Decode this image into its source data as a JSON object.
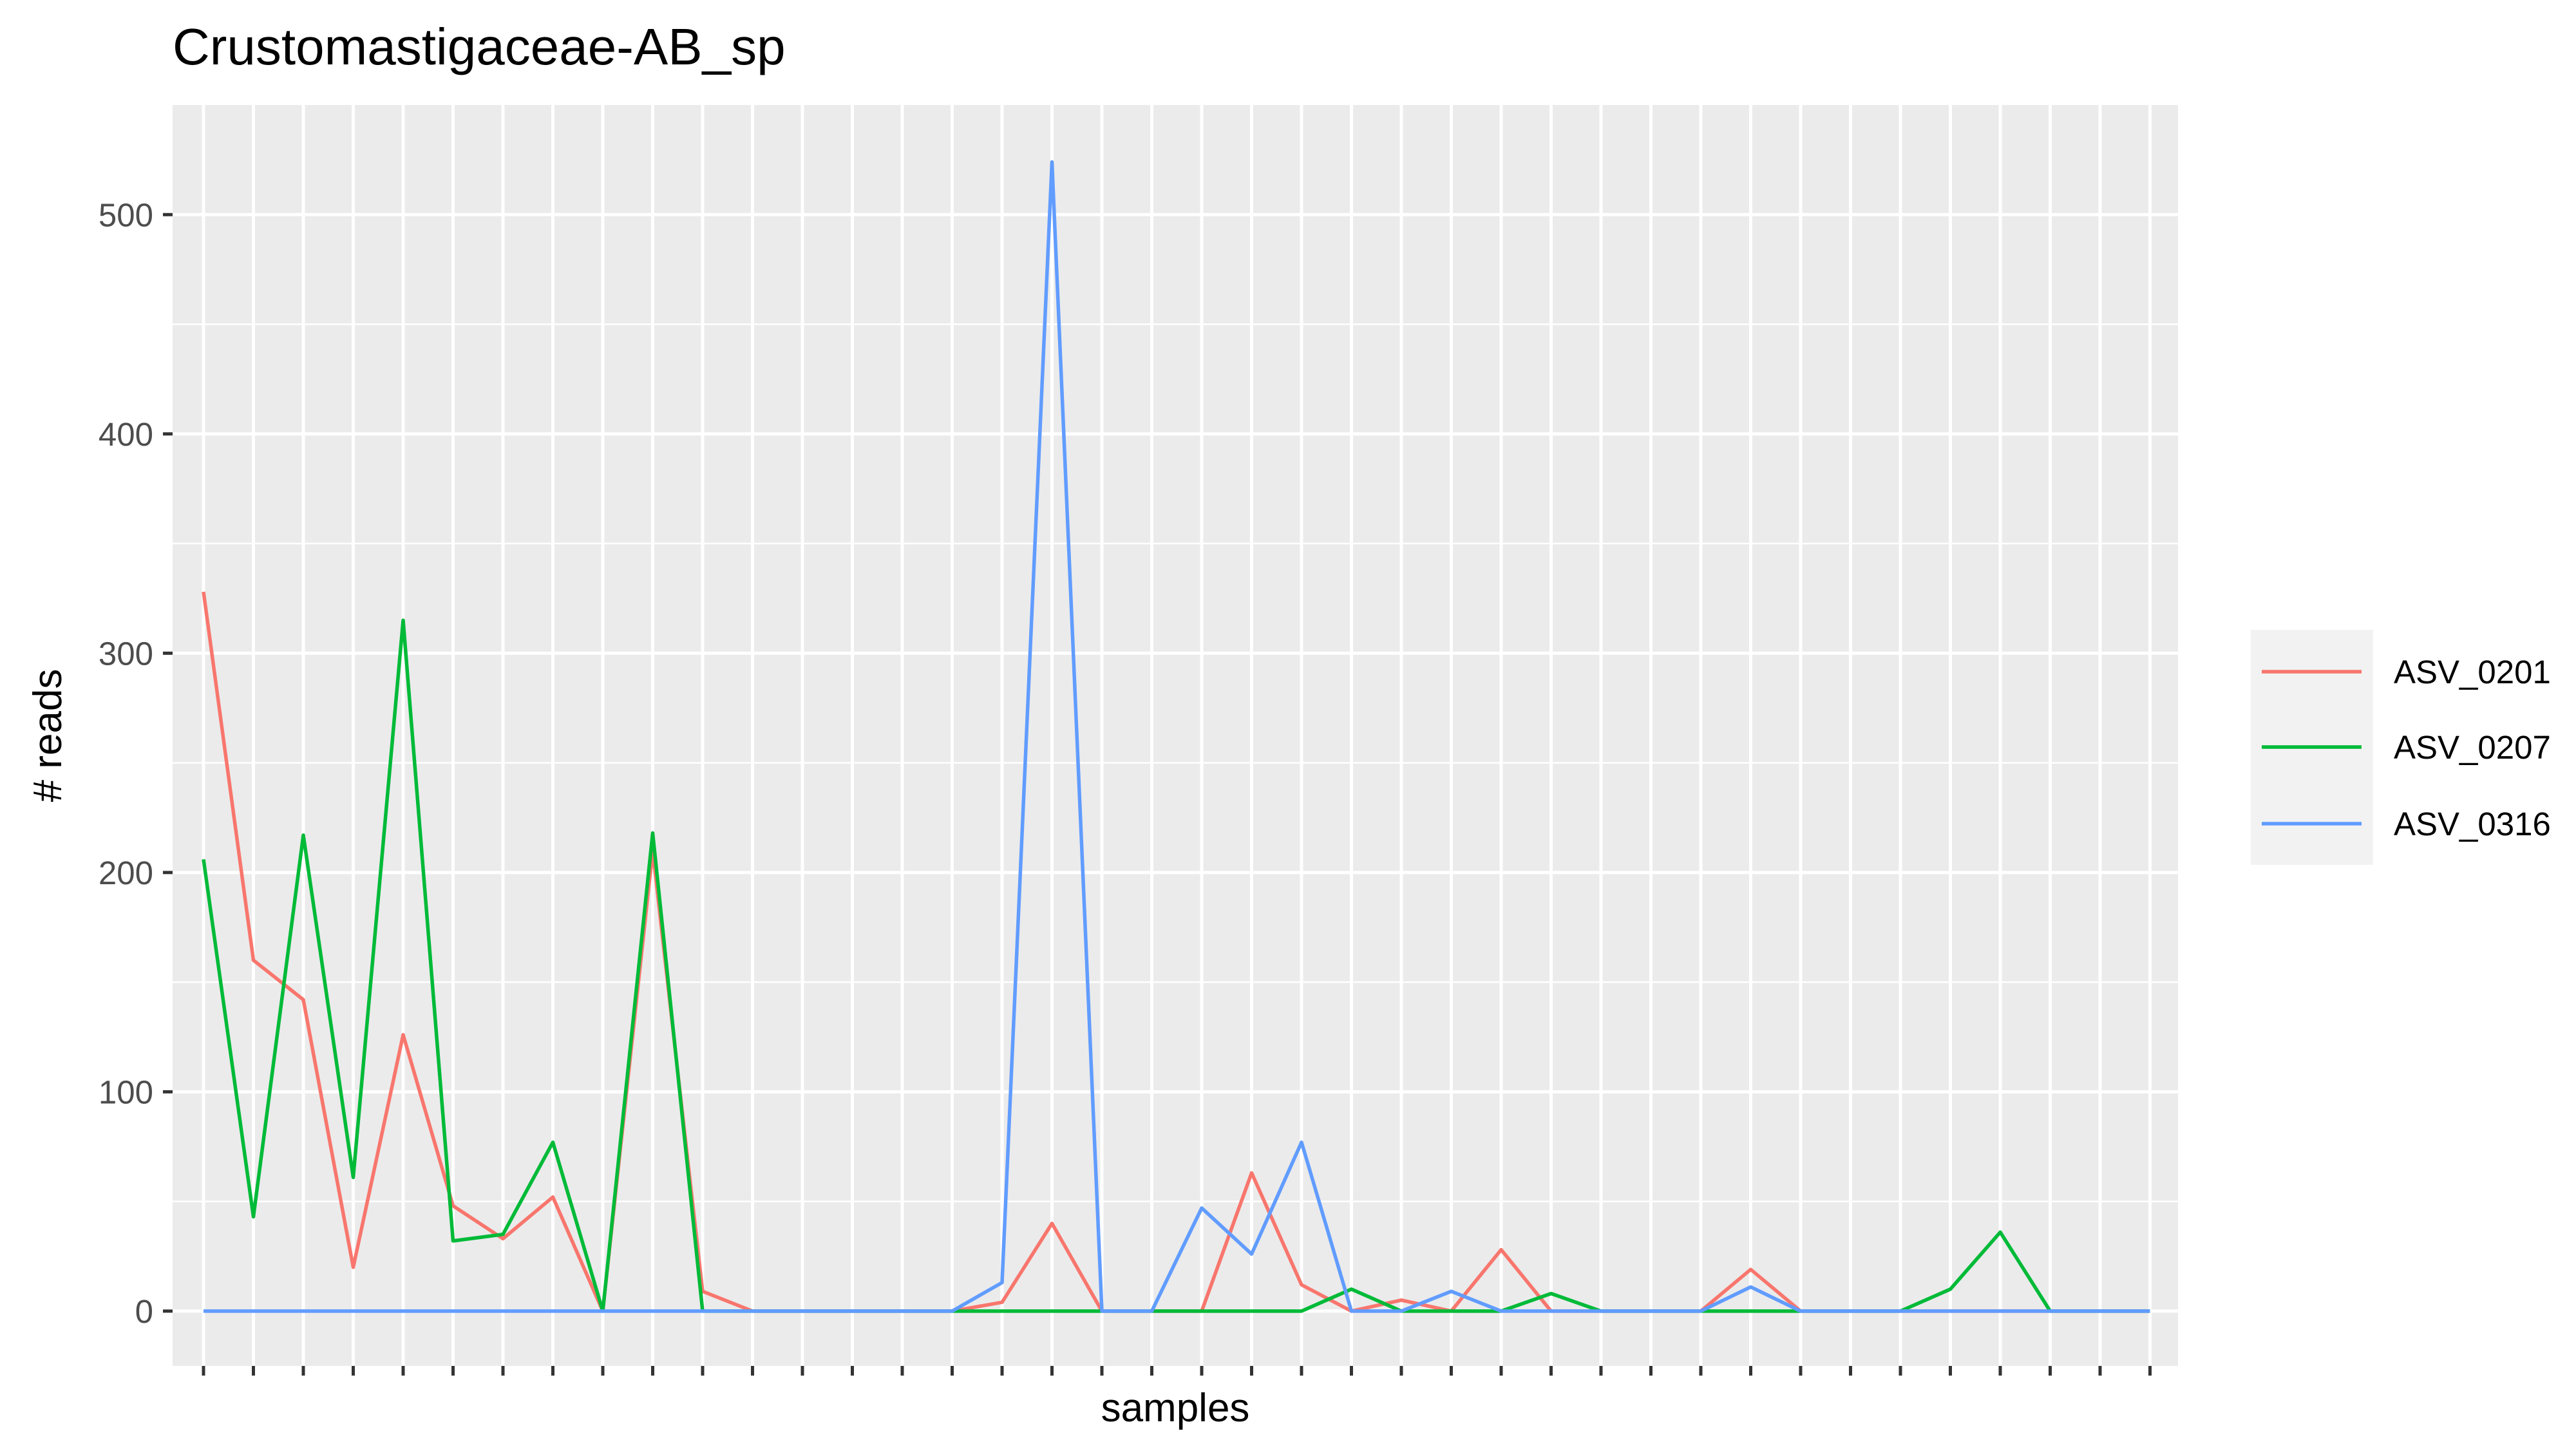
{
  "chart_data": {
    "type": "line",
    "title": "Crustomastigaceae-AB_sp",
    "xlabel": "samples",
    "ylabel": "# reads",
    "ylim": [
      -25,
      550
    ],
    "yticks": [
      0,
      100,
      200,
      300,
      400,
      500
    ],
    "x_count": 40,
    "x_tick_labels": "none (tick marks only)",
    "grid": true,
    "legend_position": "right",
    "series": [
      {
        "name": "ASV_0201",
        "color": "#F8766D",
        "values": [
          328,
          160,
          142,
          20,
          126,
          48,
          33,
          52,
          0,
          210,
          9,
          0,
          0,
          0,
          0,
          0,
          4,
          40,
          0,
          0,
          0,
          63,
          12,
          0,
          5,
          0,
          28,
          0,
          0,
          0,
          0,
          19,
          0,
          0,
          0,
          0,
          0,
          0,
          0,
          0
        ]
      },
      {
        "name": "ASV_0207",
        "color": "#00BA38",
        "values": [
          206,
          43,
          217,
          61,
          315,
          32,
          35,
          77,
          0,
          218,
          0,
          0,
          0,
          0,
          0,
          0,
          0,
          0,
          0,
          0,
          0,
          0,
          0,
          10,
          0,
          0,
          0,
          8,
          0,
          0,
          0,
          0,
          0,
          0,
          0,
          10,
          36,
          0,
          0,
          0
        ]
      },
      {
        "name": "ASV_0316",
        "color": "#619CFF",
        "values": [
          0,
          0,
          0,
          0,
          0,
          0,
          0,
          0,
          0,
          0,
          0,
          0,
          0,
          0,
          0,
          0,
          13,
          524,
          0,
          0,
          47,
          26,
          77,
          0,
          0,
          9,
          0,
          0,
          0,
          0,
          0,
          11,
          0,
          0,
          0,
          0,
          0,
          0,
          0,
          0
        ]
      }
    ]
  },
  "colors": {
    "panel_background": "#EBEBEB",
    "grid": "#FFFFFF",
    "legend_key_background": "#F2F2F2"
  }
}
